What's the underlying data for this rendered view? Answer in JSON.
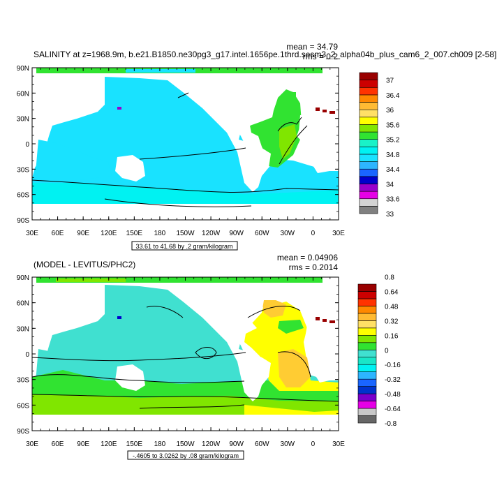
{
  "top": {
    "title": "SALINITY at z=1968.9m, b.e21.B1850.ne30pg3_g17.intel.1656pe.1thrd.sesm3_2_alpha04b_plus_cam6_2_007.ch009 [2-58]",
    "mean": "mean = 34.79",
    "rms": "rms = 0.2",
    "range": "33.61 to 41.68 by .2 gram/kilogram",
    "colorbar": {
      "colors": [
        "#808080",
        "#d3d3d3",
        "#e600e6",
        "#9900cc",
        "#0000cc",
        "#1a66ff",
        "#2db5ff",
        "#19e2ff",
        "#00f2f2",
        "#19f2c8",
        "#31e331",
        "#80e600",
        "#ffff00",
        "#ffe066",
        "#ffbb33",
        "#ff8800",
        "#ff3300",
        "#cc0000",
        "#990000"
      ],
      "labels": [
        "33",
        "33.6",
        "34",
        "34.4",
        "34.8",
        "35.2",
        "35.6",
        "36",
        "36.4",
        "37"
      ]
    }
  },
  "bottom": {
    "title": "(MODEL - LEVITUS/PHC2)",
    "mean": "mean = 0.04906",
    "rms": "rms = 0.2014",
    "range": "-.4605 to 3.0262 by .08 gram/kilogram",
    "colorbar": {
      "colors": [
        "#666666",
        "#c8c8c8",
        "#e600e6",
        "#7a00cc",
        "#0033cc",
        "#1a66ff",
        "#2db5ff",
        "#00f2f2",
        "#19e6c8",
        "#40e0d0",
        "#31e331",
        "#80e600",
        "#ffff00",
        "#ffe066",
        "#ffbb33",
        "#ff8800",
        "#ff3300",
        "#cc0000",
        "#990000"
      ],
      "labels": [
        "-0.8",
        "-0.64",
        "-0.48",
        "-0.32",
        "-0.16",
        "0",
        "0.16",
        "0.32",
        "0.48",
        "0.64",
        "0.8"
      ]
    }
  },
  "axes": {
    "xticks": [
      "30E",
      "60E",
      "90E",
      "120E",
      "150E",
      "180",
      "150W",
      "120W",
      "90W",
      "60W",
      "30W",
      "0",
      "30E"
    ],
    "yticks": [
      "90N",
      "60N",
      "30N",
      "0",
      "30S",
      "60S",
      "90S"
    ]
  },
  "colors": {
    "land": "#ffffff",
    "top_ocean": "#19e2ff",
    "top_ocean_alt": "#00f2f2",
    "top_atlantic": "#31e331",
    "top_atlantic_high": "#80e600",
    "bot_ocean": "#40e0d0",
    "bot_green": "#31e331",
    "bot_lime": "#80e600",
    "bot_yellow": "#ffff00",
    "bot_orange": "#ffcc33",
    "dark_red": "#990000"
  }
}
